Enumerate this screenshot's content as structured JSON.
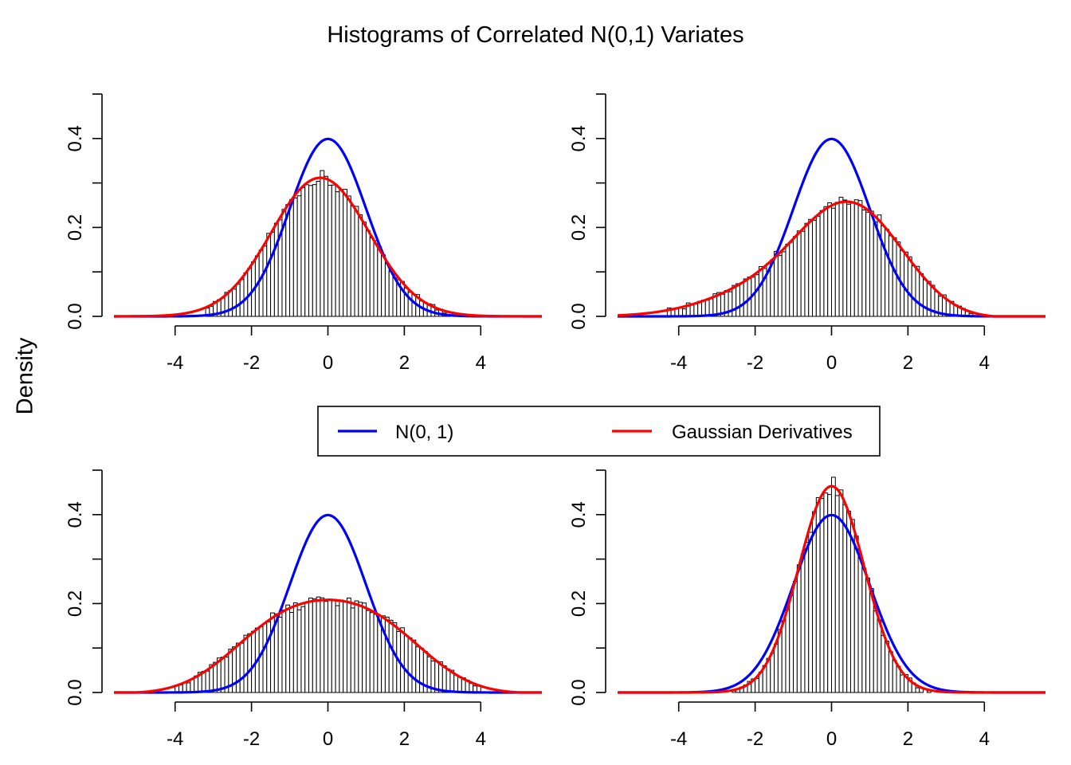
{
  "title": "Histograms of Correlated N(0,1) Variates",
  "ylabel": "Density",
  "legend": [
    {
      "label": "N(0, 1)",
      "color": "#0000ff"
    },
    {
      "label": "Gaussian Derivatives",
      "color": "#ff0000"
    }
  ],
  "chart_data": [
    {
      "type": "bar",
      "panel": "top-left",
      "xlim": [
        -5.6,
        5.6
      ],
      "ylim": [
        0,
        0.5
      ],
      "x_ticks": [
        "-4",
        "-2",
        "0",
        "2",
        "4"
      ],
      "y_ticks": [
        "0.0",
        "0.2",
        "0.4"
      ],
      "bin_width": 0.1,
      "histogram": {
        "mean": -0.2,
        "sd": 1.28,
        "skew": 0.0,
        "kurt": 0.0,
        "range": [
          -3.2,
          3.2
        ]
      },
      "series": [
        {
          "name": "N(0, 1)",
          "color": "#0000ff",
          "mean": 0,
          "sd": 1
        },
        {
          "name": "Gaussian Derivatives",
          "color": "#ff0000",
          "mean": -0.2,
          "sd": 1.28,
          "skew": 0.0,
          "kurt": 0.0
        }
      ]
    },
    {
      "type": "bar",
      "panel": "top-right",
      "xlim": [
        -5.6,
        5.6
      ],
      "ylim": [
        0,
        0.5
      ],
      "x_ticks": [
        "-4",
        "-2",
        "0",
        "2",
        "4"
      ],
      "y_ticks": [
        "0.0",
        "0.2",
        "0.4"
      ],
      "bin_width": 0.1,
      "histogram": {
        "mean": 0.0,
        "sd": 1.6,
        "skew": -0.55,
        "kurt": 0.0,
        "range": [
          -4.3,
          3.7
        ]
      },
      "series": [
        {
          "name": "N(0, 1)",
          "color": "#0000ff",
          "mean": 0,
          "sd": 1
        },
        {
          "name": "Gaussian Derivatives",
          "color": "#ff0000",
          "mean": 0.0,
          "sd": 1.6,
          "skew": -0.55,
          "kurt": 0.0
        }
      ]
    },
    {
      "type": "bar",
      "panel": "bottom-left",
      "xlim": [
        -5.6,
        5.6
      ],
      "ylim": [
        0,
        0.5
      ],
      "x_ticks": [
        "-4",
        "-2",
        "0",
        "2",
        "4"
      ],
      "y_ticks": [
        "0.0",
        "0.2",
        "0.4"
      ],
      "bin_width": 0.1,
      "histogram": {
        "mean": 0.0,
        "sd": 1.7,
        "skew": 0.0,
        "kurt": -0.9,
        "range": [
          -4.0,
          4.0
        ]
      },
      "series": [
        {
          "name": "N(0, 1)",
          "color": "#0000ff",
          "mean": 0,
          "sd": 1
        },
        {
          "name": "Gaussian Derivatives",
          "color": "#ff0000",
          "mean": 0.0,
          "sd": 1.7,
          "skew": 0.0,
          "kurt": -0.9
        }
      ]
    },
    {
      "type": "bar",
      "panel": "bottom-right",
      "xlim": [
        -5.6,
        5.6
      ],
      "ylim": [
        0,
        0.5
      ],
      "x_ticks": [
        "-4",
        "-2",
        "0",
        "2",
        "4"
      ],
      "y_ticks": [
        "0.0",
        "0.2",
        "0.4"
      ],
      "bin_width": 0.1,
      "histogram": {
        "mean": 0.0,
        "sd": 0.86,
        "skew": 0.0,
        "kurt": 0.0,
        "range": [
          -2.6,
          2.6
        ]
      },
      "series": [
        {
          "name": "N(0, 1)",
          "color": "#0000ff",
          "mean": 0,
          "sd": 1
        },
        {
          "name": "Gaussian Derivatives",
          "color": "#ff0000",
          "mean": 0.0,
          "sd": 0.86,
          "skew": 0.0,
          "kurt": 0.0
        }
      ]
    }
  ]
}
